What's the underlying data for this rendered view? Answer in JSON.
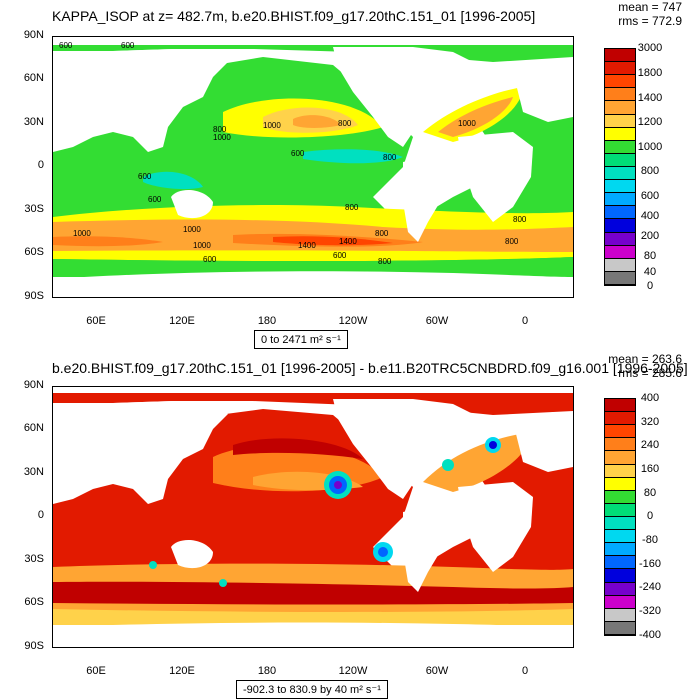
{
  "panels": [
    {
      "title": "KAPPA_ISOP at z= 482.7m, b.e20.BHIST.f09_g17.20thC.151_01 [1996-2005]",
      "stat_mean": "mean = 747",
      "stat_rms": "rms = 772.9",
      "range_text": "0 to 2471 m² s⁻¹",
      "lat_labels": [
        "90N",
        "60N",
        "30N",
        "0",
        "30S",
        "60S",
        "90S"
      ],
      "lon_labels": [
        "60E",
        "120E",
        "180",
        "120W",
        "60W",
        "0"
      ],
      "colorbar": {
        "labels": [
          "3000",
          "1800",
          "1400",
          "1200",
          "1000",
          "800",
          "600",
          "400",
          "200",
          "80",
          "40",
          "0"
        ],
        "colors": [
          "#c00000",
          "#e21a00",
          "#ff4500",
          "#ff7f1a",
          "#ffa533",
          "#ffd24a",
          "#ffff00",
          "#33dd33",
          "#00dd77",
          "#00e0c0",
          "#00d8f0",
          "#00aaff",
          "#0066ff",
          "#0000dd",
          "#7700cc",
          "#cc00cc",
          "#c8c8c8",
          "#777777"
        ]
      },
      "contour_labels": [
        "600",
        "600",
        "1000",
        "800",
        "1000",
        "800",
        "600",
        "1000",
        "600",
        "800",
        "600",
        "1000",
        "800",
        "1400",
        "800",
        "1000",
        "800",
        "600",
        "1000",
        "1400",
        "800",
        "600",
        "800"
      ]
    },
    {
      "title": "b.e20.BHIST.f09_g17.20thC.151_01 [1996-2005] - b.e11.B20TRC5CNBDRD.f09_g16.001 [1996-2005]",
      "stat_mean": "mean = 263.6",
      "stat_rms": "rms = 285.6",
      "range_text": "-902.3 to 830.9 by 40 m² s⁻¹",
      "lat_labels": [
        "90N",
        "60N",
        "30N",
        "0",
        "30S",
        "60S",
        "90S"
      ],
      "lon_labels": [
        "60E",
        "120E",
        "180",
        "120W",
        "60W",
        "0"
      ],
      "colorbar": {
        "labels": [
          "400",
          "320",
          "240",
          "160",
          "80",
          "0",
          "-80",
          "-160",
          "-240",
          "-320",
          "-400"
        ],
        "colors": [
          "#c00000",
          "#e21a00",
          "#ff4500",
          "#ff7f1a",
          "#ffa533",
          "#ffd24a",
          "#ffff00",
          "#33dd33",
          "#00dd77",
          "#00e0c0",
          "#00d8f0",
          "#00aaff",
          "#0066ff",
          "#0000dd",
          "#7700cc",
          "#cc00cc",
          "#c8c8c8",
          "#777777"
        ]
      }
    }
  ]
}
